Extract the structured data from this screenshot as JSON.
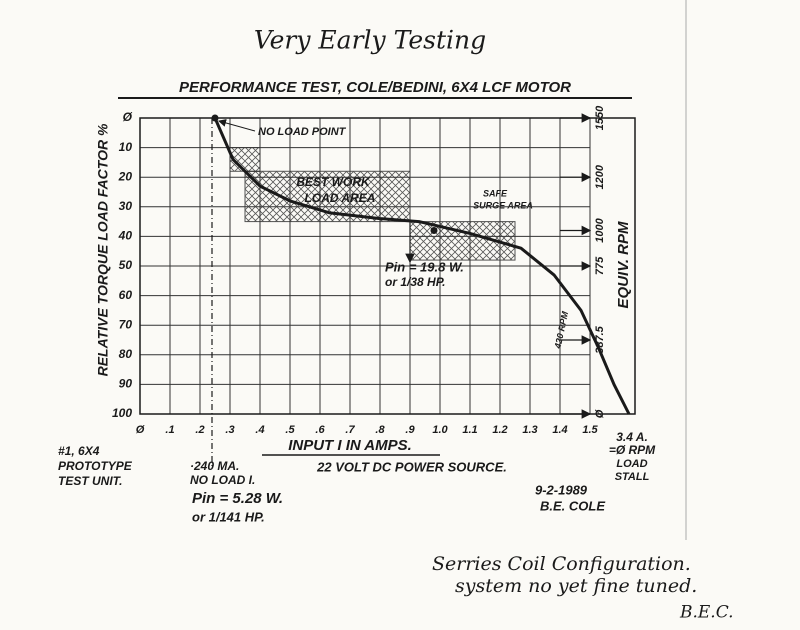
{
  "chart_data": {
    "type": "line",
    "header": "Very Early Testing",
    "title": "PERFORMANCE TEST, COLE/BEDINI, 6X4 LCF MOTOR",
    "xlabel": "INPUT I IN AMPS.",
    "subtitle": "22 VOLT DC POWER SOURCE.",
    "ylabel": "RELATIVE TORQUE LOAD FACTOR %",
    "y2label": "EQUIV. RPM",
    "x": [
      0.25,
      0.31,
      0.4,
      0.5,
      0.63,
      0.8,
      0.93,
      1.1,
      1.27,
      1.38,
      1.47,
      1.53,
      1.58,
      1.63
    ],
    "values": [
      0,
      14,
      23,
      28,
      32,
      34,
      35,
      39,
      44,
      53,
      65,
      78,
      90,
      100
    ],
    "color": "#1a1a1a",
    "xlim": [
      0,
      1.65
    ],
    "ylim": [
      0,
      100
    ],
    "y_inverted": true,
    "grid": true,
    "xticks": [
      {
        "value": 0,
        "label": "Ø"
      },
      {
        "value": 0.1,
        "label": ".1"
      },
      {
        "value": 0.2,
        "label": ".2"
      },
      {
        "value": 0.3,
        "label": ".3"
      },
      {
        "value": 0.4,
        "label": ".4"
      },
      {
        "value": 0.5,
        "label": ".5"
      },
      {
        "value": 0.6,
        "label": ".6"
      },
      {
        "value": 0.7,
        "label": ".7"
      },
      {
        "value": 0.8,
        "label": ".8"
      },
      {
        "value": 0.9,
        "label": ".9"
      },
      {
        "value": 1,
        "label": "1.0"
      },
      1.1,
      1.2,
      1.3,
      1.4,
      1.5
    ],
    "yticks": [
      {
        "value": 0,
        "label": "Ø"
      },
      10,
      20,
      30,
      40,
      50,
      60,
      70,
      80,
      90,
      100
    ],
    "rpm_ticks": [
      {
        "value": 0,
        "label": "1550"
      },
      {
        "value": 20,
        "label": "1200"
      },
      {
        "value": 38,
        "label": "1000"
      },
      {
        "value": 50,
        "label": "775"
      },
      {
        "value": 75,
        "label": "387.5"
      },
      {
        "value": 100,
        "label": "Ø"
      }
    ],
    "regions": [
      {
        "label": [
          "BEST WORK",
          "LOAD AREA"
        ],
        "x": [
          0.35,
          0.9
        ],
        "y": [
          18,
          35
        ]
      },
      {
        "x": [
          0.3,
          0.4
        ],
        "y": [
          10,
          18
        ]
      },
      {
        "label": [
          "SAFE",
          "SURGE AREA"
        ],
        "x": [
          0.9,
          1.25
        ],
        "y": [
          35,
          48
        ]
      }
    ],
    "points": [
      {
        "x": 0.25,
        "y": 0,
        "label": "NO LOAD POINT"
      },
      {
        "x": 0.98,
        "y": 38
      }
    ],
    "no_load_current": 0.24,
    "rpm_note": "420 RPM",
    "notes": {
      "operating": [
        "Pin = 19.8 W.",
        "or 1/38 HP."
      ],
      "no_load": [
        "·240 MA.",
        "NO LOAD I."
      ],
      "no_load_power": [
        "Pin = 5.28 W.",
        "or 1/141 HP."
      ],
      "unit": [
        "#1, 6X4",
        "PROTOTYPE",
        "TEST UNIT."
      ],
      "stall": [
        "3.4 A.",
        "=Ø RPM",
        "LOAD",
        "STALL"
      ],
      "signature": [
        "9-2-1989",
        "B.E. COLE"
      ],
      "handwritten": [
        "Serries Coil Configuration.",
        "system no yet fine tuned.",
        "B.E.C."
      ]
    }
  }
}
